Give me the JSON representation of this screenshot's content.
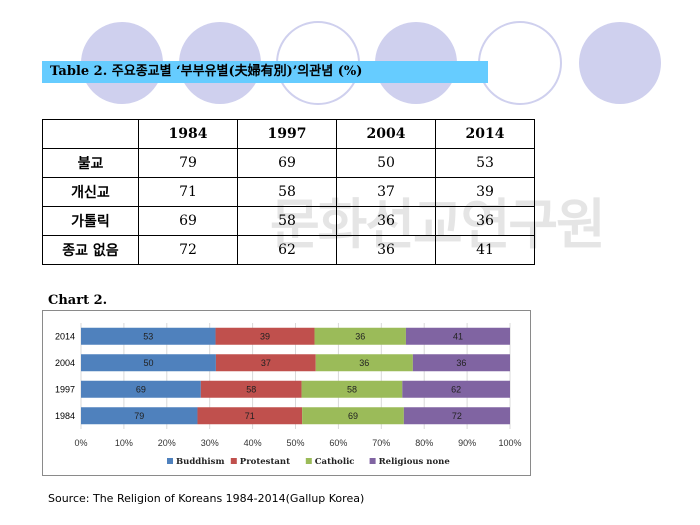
{
  "title": "Table 2. 주요종교별 ‘부부유별(夫婦有別)’의관념 (%)",
  "table": {
    "years": [
      "1984",
      "1997",
      "2004",
      "2014"
    ],
    "rows": [
      {
        "label": "불교",
        "values": [
          "79",
          "69",
          "50",
          "53"
        ]
      },
      {
        "label": "개신교",
        "values": [
          "71",
          "58",
          "37",
          "39"
        ]
      },
      {
        "label": "가톨릭",
        "values": [
          "69",
          "58",
          "36",
          "36"
        ]
      },
      {
        "label": "종교 없음",
        "values": [
          "72",
          "62",
          "36",
          "41"
        ]
      }
    ]
  },
  "chart_label": "Chart 2.",
  "chart_data": {
    "type": "bar",
    "orientation": "horizontal",
    "stacked": "percent",
    "categories": [
      "2014",
      "2004",
      "1997",
      "1984"
    ],
    "series": [
      {
        "name": "Buddhism",
        "color": "#4f81bd",
        "values": [
          53,
          50,
          69,
          79
        ]
      },
      {
        "name": "Protestant",
        "color": "#c0504d",
        "values": [
          39,
          37,
          58,
          71
        ]
      },
      {
        "name": "Catholic",
        "color": "#9bbb59",
        "values": [
          36,
          36,
          58,
          69
        ]
      },
      {
        "name": "Religious none",
        "color": "#8064a2",
        "values": [
          41,
          36,
          62,
          72
        ]
      }
    ],
    "xticks": [
      "0%",
      "10%",
      "20%",
      "30%",
      "40%",
      "50%",
      "60%",
      "70%",
      "80%",
      "90%",
      "100%"
    ],
    "xlim": [
      0,
      100
    ],
    "grid": true,
    "legend": "bottom"
  },
  "watermark": "문화선교연구원",
  "source": "Source:  The  Religion of Koreans 1984-2014(Gallup Korea)"
}
